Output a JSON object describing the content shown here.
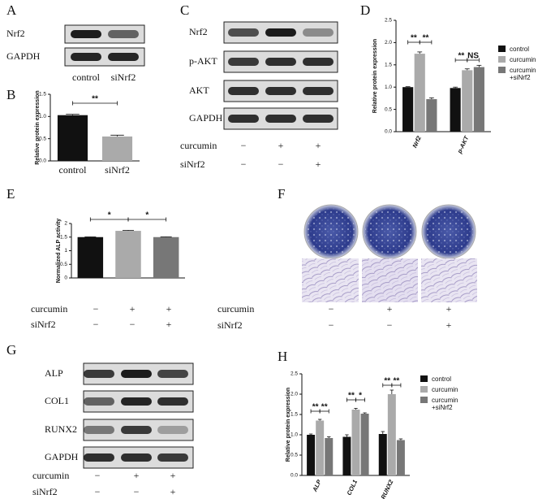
{
  "panels": {
    "letters": [
      "A",
      "B",
      "C",
      "D",
      "E",
      "F",
      "G",
      "H"
    ]
  },
  "blots": {
    "A": {
      "rows": [
        "Nrf2",
        "GAPDH"
      ],
      "lanes": [
        "control",
        "siNrf2"
      ]
    },
    "C": {
      "rows": [
        "Nrf2",
        "p-AKT",
        "AKT",
        "GAPDH"
      ]
    },
    "G": {
      "rows": [
        "ALP",
        "COL1",
        "RUNX2",
        "GAPDH"
      ]
    }
  },
  "conditions": {
    "C": [
      {
        "label": "curcumin",
        "signs": [
          "−",
          "+",
          "+"
        ]
      },
      {
        "label": "siNrf2",
        "signs": [
          "−",
          "−",
          "+"
        ]
      }
    ],
    "E": [
      {
        "label": "curcumin",
        "signs": [
          "−",
          "+",
          "+"
        ]
      },
      {
        "label": "siNrf2",
        "signs": [
          "−",
          "−",
          "+"
        ]
      }
    ],
    "F": [
      {
        "label": "curcumin",
        "signs": [
          "−",
          "+",
          "+"
        ]
      },
      {
        "label": "siNrf2",
        "signs": [
          "−",
          "−",
          "+"
        ]
      }
    ],
    "G": [
      {
        "label": "curcumin",
        "signs": [
          "−",
          "+",
          "+"
        ]
      },
      {
        "label": "siNrf2",
        "signs": [
          "−",
          "−",
          "+"
        ]
      }
    ]
  },
  "chart_data": [
    {
      "type": "bar",
      "y_label": "Relative protein expression",
      "categories": [
        "control",
        "siNrf2"
      ],
      "values": [
        1.03,
        0.55
      ],
      "errors": [
        0.02,
        0.03
      ],
      "colors": [
        "#111111",
        "#aaaaaa"
      ],
      "ylim": [
        0,
        1.5
      ],
      "yticks": [
        {
          "value": 0,
          "label": "0.0"
        },
        {
          "value": 0.5,
          "label": "0.5"
        },
        {
          "value": 1,
          "label": "1.0"
        },
        {
          "value": 1.5,
          "label": "1.5"
        }
      ],
      "annotations": [
        "**"
      ]
    },
    {
      "type": "grouped_bar",
      "y_label": "Relative protein expression",
      "categories": [
        "Nrf2",
        "p-AKT"
      ],
      "series": [
        {
          "name": "control",
          "color": "#111111",
          "values": [
            1.0,
            0.98
          ],
          "errors": [
            0.01,
            0.02
          ]
        },
        {
          "name": "curcumin",
          "color": "#aaaaaa",
          "values": [
            1.75,
            1.38
          ],
          "errors": [
            0.04,
            0.03
          ]
        },
        {
          "name": "curcumin +siNrf2",
          "color": "#777777",
          "values": [
            0.73,
            1.45
          ],
          "errors": [
            0.03,
            0.04
          ]
        }
      ],
      "ylim": [
        0,
        2.5
      ],
      "yticks": [
        {
          "value": 0,
          "label": "0.0"
        },
        {
          "value": 0.5,
          "label": "0.5"
        },
        {
          "value": 1,
          "label": "1.0"
        },
        {
          "value": 1.5,
          "label": "1.5"
        },
        {
          "value": 2,
          "label": "2.0"
        },
        {
          "value": 2.5,
          "label": "2.5"
        }
      ],
      "annotations": [
        "**",
        "**",
        "**",
        "NS"
      ]
    },
    {
      "type": "bar",
      "y_label": "Normalized ALP activity",
      "categories": [
        null,
        null,
        null
      ],
      "values": [
        1.5,
        1.73,
        1.5
      ],
      "errors": [
        0.01,
        0.02,
        0.01
      ],
      "colors": [
        "#111111",
        "#aaaaaa",
        "#777777"
      ],
      "ylim": [
        0,
        2
      ],
      "yticks": [
        0,
        0.5,
        1,
        1.5,
        2
      ],
      "annotations": [
        "*",
        "*"
      ]
    },
    {
      "type": "grouped_bar",
      "y_label": "Relative protein expression",
      "categories": [
        "ALP",
        "COL1",
        "RUNX2"
      ],
      "series": [
        {
          "name": "control",
          "color": "#111111",
          "values": [
            1.0,
            0.95,
            1.02
          ],
          "errors": [
            0.02,
            0.05,
            0.06
          ]
        },
        {
          "name": "curcumin",
          "color": "#aaaaaa",
          "values": [
            1.35,
            1.62,
            2.0
          ],
          "errors": [
            0.03,
            0.03,
            0.1
          ]
        },
        {
          "name": "curcumin +siNrf2",
          "color": "#777777",
          "values": [
            0.92,
            1.52,
            0.87
          ],
          "errors": [
            0.03,
            0.02,
            0.03
          ]
        }
      ],
      "ylim": [
        0,
        2.5
      ],
      "yticks": [
        {
          "value": 0,
          "label": "0.0"
        },
        {
          "value": 0.5,
          "label": "0.5"
        },
        {
          "value": 1,
          "label": "1.0"
        },
        {
          "value": 1.5,
          "label": "1.5"
        },
        {
          "value": 2,
          "label": "2.0"
        },
        {
          "value": 2.5,
          "label": "2.5"
        }
      ],
      "annotations": [
        "**",
        "**",
        "**",
        "*",
        "**",
        "**"
      ]
    }
  ]
}
